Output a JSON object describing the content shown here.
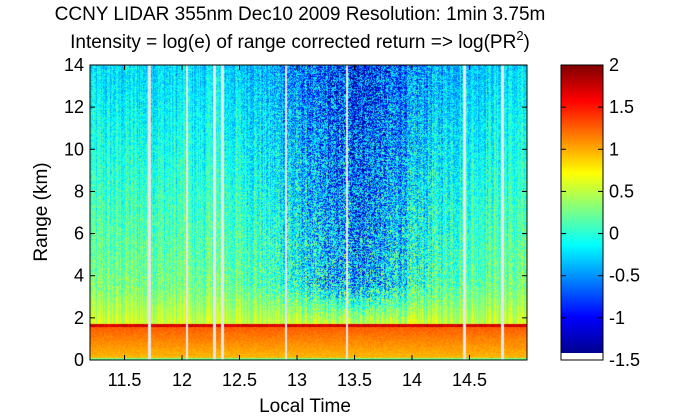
{
  "chart_data": {
    "type": "heatmap",
    "title": "CCNY LIDAR 355nm Dec10 2009 Resolution: 1min 3.75m",
    "subtitle_prefix": "Intensity = log(e) of range corrected return => log(PR",
    "subtitle_sup": "2",
    "subtitle_suffix": ")",
    "xlabel": "Local Time",
    "ylabel": "Range (km)",
    "xlim": [
      11.2,
      15.0
    ],
    "ylim": [
      0,
      14
    ],
    "x_ticks": [
      11.5,
      12,
      12.5,
      13,
      13.5,
      14,
      14.5
    ],
    "x_tick_labels": [
      "11.5",
      "12",
      "12.5",
      "13",
      "13.5",
      "14",
      "14.5"
    ],
    "y_ticks": [
      0,
      2,
      4,
      6,
      8,
      10,
      12,
      14
    ],
    "y_tick_labels": [
      "0",
      "2",
      "4",
      "6",
      "8",
      "10",
      "12",
      "14"
    ],
    "colorbar": {
      "colormap": "jet",
      "clim": [
        -1.5,
        2
      ],
      "ticks": [
        2,
        1.5,
        1,
        0.5,
        0,
        -0.5,
        -1,
        -1.5
      ],
      "tick_labels": [
        "2",
        "1.5",
        "1",
        "0.5",
        "0",
        "-0.5",
        "-1",
        "-1.5"
      ]
    },
    "features": {
      "boundary_layer_top_km": 1.6,
      "data_gaps_local_time": [
        11.71,
        12.04,
        12.28,
        12.35,
        12.9,
        13.43,
        14.45,
        14.78
      ]
    }
  }
}
